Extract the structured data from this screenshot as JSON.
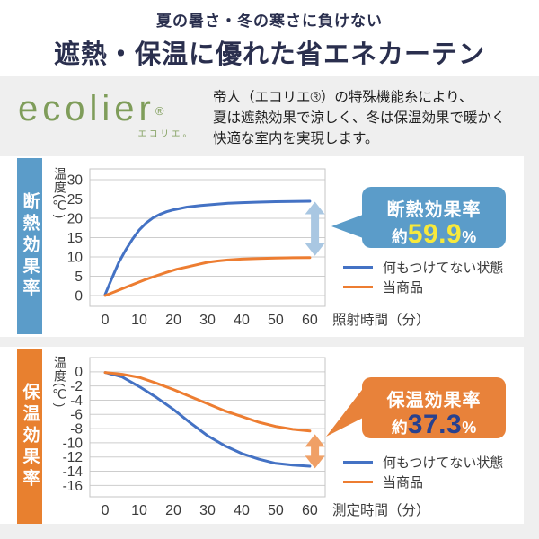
{
  "page": {
    "bg": "#efefef",
    "header": {
      "subtitle": "夏の暑さ・冬の寒さに負けない",
      "title": "遮熱・保温に優れた省エネカーテン",
      "text_color": "#2a2f4e"
    },
    "intro": {
      "logo_text": "ecolier",
      "logo_reg": "®",
      "logo_sub": "エコリエ。",
      "logo_color": "#7f9d5a",
      "description_lines": [
        "帝人（エコリエ®）の特殊機能糸により、",
        "夏は遮熱効果で涼しく、冬は保温効果で暖かく",
        "快適な室内を実現します。"
      ]
    }
  },
  "sections": [
    {
      "side_label": "断熱効果率",
      "accent": "#5b9cc9",
      "badge": {
        "title": "断熱効果率",
        "prefix": "約",
        "value": "59.9",
        "suffix": "%",
        "value_color": "#f7e93c",
        "bg": "#5b9cc9"
      },
      "legend": [
        {
          "label": "何もつけてない状態",
          "color": "#4472c4"
        },
        {
          "label": "当商品",
          "color": "#ed7d31"
        }
      ]
    },
    {
      "side_label": "保温効果率",
      "accent": "#e8802f",
      "badge": {
        "title": "保温効果率",
        "prefix": "約",
        "value": "37.3",
        "suffix": "%",
        "value_color": "#27418f",
        "bg": "#e8823a"
      },
      "legend": [
        {
          "label": "何もつけてない状態",
          "color": "#4472c4"
        },
        {
          "label": "当商品",
          "color": "#ed7d31"
        }
      ]
    }
  ],
  "chart_data": [
    {
      "type": "line",
      "title": "断熱効果率 約59.9%",
      "ylabel": "温度(℃)",
      "xlabel": "照射時間（分）",
      "xticks": [
        0,
        10,
        20,
        30,
        40,
        50,
        60
      ],
      "yticks": [
        30,
        25,
        20,
        15,
        10,
        5,
        0
      ],
      "xlim": [
        -4.5,
        64.5
      ],
      "ylim": [
        -2.8,
        32.8
      ],
      "grid": true,
      "legend_position": "right-bottom",
      "series": [
        {
          "name": "何もつけてない状態",
          "color": "#4472c4",
          "points": [
            [
              0,
              0.3
            ],
            [
              2,
              4.5
            ],
            [
              4,
              8.6
            ],
            [
              6,
              11.8
            ],
            [
              8,
              14.6
            ],
            [
              10,
              17.0
            ],
            [
              12,
              18.8
            ],
            [
              14,
              20.1
            ],
            [
              16,
              21.0
            ],
            [
              18,
              21.7
            ],
            [
              20,
              22.2
            ],
            [
              24,
              22.9
            ],
            [
              28,
              23.3
            ],
            [
              32,
              23.6
            ],
            [
              36,
              23.9
            ],
            [
              40,
              24.05
            ],
            [
              45,
              24.2
            ],
            [
              50,
              24.3
            ],
            [
              55,
              24.38
            ],
            [
              60,
              24.42
            ]
          ]
        },
        {
          "name": "当商品",
          "color": "#ed7d31",
          "points": [
            [
              0,
              0
            ],
            [
              3,
              1.05
            ],
            [
              6,
              2.1
            ],
            [
              9,
              3.15
            ],
            [
              12,
              4.2
            ],
            [
              15,
              5.1
            ],
            [
              18,
              6.0
            ],
            [
              21,
              6.8
            ],
            [
              24,
              7.4
            ],
            [
              27,
              8.0
            ],
            [
              30,
              8.6
            ],
            [
              33,
              8.95
            ],
            [
              36,
              9.2
            ],
            [
              40,
              9.45
            ],
            [
              45,
              9.6
            ],
            [
              50,
              9.7
            ],
            [
              55,
              9.78
            ],
            [
              60,
              9.82
            ]
          ]
        }
      ],
      "arrow": {
        "x": 61.5,
        "y1": 24.3,
        "y2": 10.3,
        "color": "#a9c7e2"
      }
    },
    {
      "type": "line",
      "title": "保温効果率 約37.3%",
      "ylabel": "温度(℃)",
      "xlabel": "測定時間（分）",
      "xticks": [
        0,
        10,
        20,
        30,
        40,
        50,
        60
      ],
      "yticks": [
        0,
        -2,
        -4,
        -6,
        -8,
        -10,
        -12,
        -14,
        -16
      ],
      "xlim": [
        -4.5,
        64.5
      ],
      "ylim": [
        -17.6,
        2.0
      ],
      "grid": true,
      "legend_position": "right-bottom",
      "series": [
        {
          "name": "何もつけてない状態",
          "color": "#4472c4",
          "points": [
            [
              0,
              -0.1
            ],
            [
              5,
              -0.75
            ],
            [
              10,
              -2.1
            ],
            [
              15,
              -3.6
            ],
            [
              20,
              -5.3
            ],
            [
              25,
              -7.2
            ],
            [
              30,
              -9.0
            ],
            [
              35,
              -10.4
            ],
            [
              40,
              -11.5
            ],
            [
              45,
              -12.3
            ],
            [
              50,
              -12.9
            ],
            [
              55,
              -13.15
            ],
            [
              60,
              -13.3
            ]
          ]
        },
        {
          "name": "当商品",
          "color": "#ed7d31",
          "points": [
            [
              0,
              -0.1
            ],
            [
              5,
              -0.35
            ],
            [
              10,
              -0.8
            ],
            [
              15,
              -1.6
            ],
            [
              20,
              -2.5
            ],
            [
              25,
              -3.5
            ],
            [
              30,
              -4.5
            ],
            [
              35,
              -5.5
            ],
            [
              40,
              -6.3
            ],
            [
              45,
              -7.1
            ],
            [
              50,
              -7.7
            ],
            [
              55,
              -8.1
            ],
            [
              60,
              -8.35
            ]
          ]
        }
      ],
      "arrow": {
        "x": 61.5,
        "y1": -8.8,
        "y2": -13.6,
        "color": "#f0a066"
      }
    }
  ]
}
